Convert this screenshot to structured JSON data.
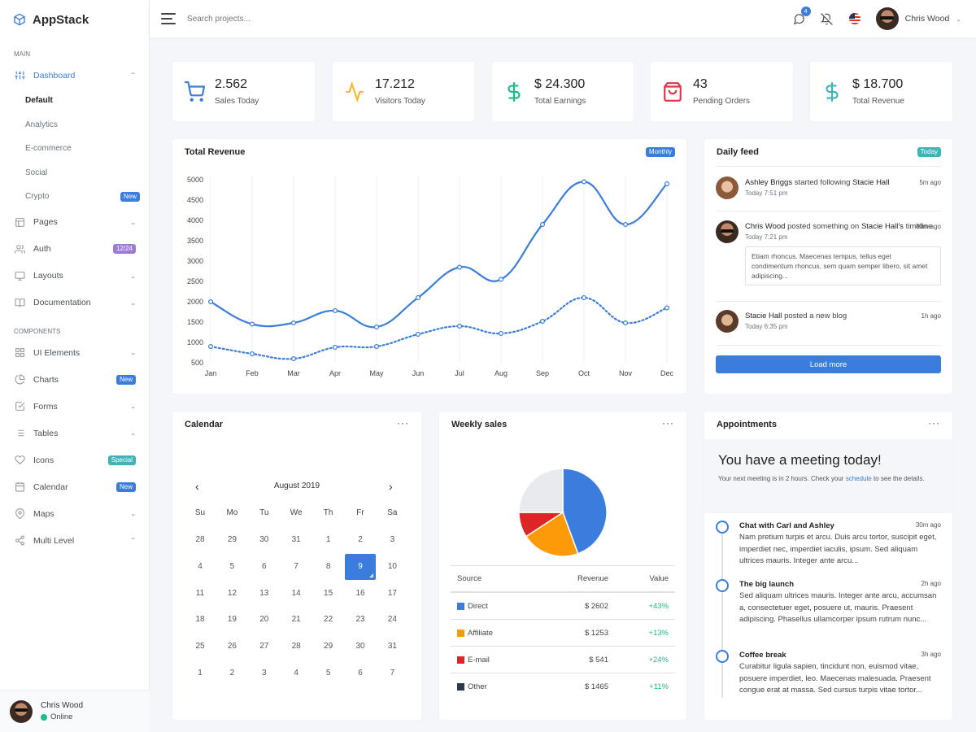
{
  "brand": {
    "name": "AppStack"
  },
  "sidebar": {
    "main_header": "Main",
    "components_header": "Components",
    "dashboard": {
      "label": "Dashboard",
      "items": [
        {
          "label": "Default"
        },
        {
          "label": "Analytics"
        },
        {
          "label": "E-commerce"
        },
        {
          "label": "Social"
        },
        {
          "label": "Crypto",
          "badge": "New"
        }
      ]
    },
    "pages": {
      "label": "Pages"
    },
    "auth": {
      "label": "Auth",
      "badge": "12/24"
    },
    "layouts": {
      "label": "Layouts"
    },
    "documentation": {
      "label": "Documentation"
    },
    "ui_elements": {
      "label": "UI Elements"
    },
    "charts": {
      "label": "Charts",
      "badge": "New"
    },
    "forms": {
      "label": "Forms"
    },
    "tables": {
      "label": "Tables"
    },
    "icons": {
      "label": "Icons",
      "badge": "Special"
    },
    "calendar": {
      "label": "Calendar",
      "badge": "New"
    },
    "maps": {
      "label": "Maps"
    },
    "multi_level": {
      "label": "Multi Level"
    },
    "user": {
      "name": "Chris Wood",
      "status": "Online"
    }
  },
  "topbar": {
    "search_placeholder": "Search projects...",
    "notification_count": "4",
    "user_name": "Chris Wood"
  },
  "stats": [
    {
      "value": "2.562",
      "label": "Sales Today",
      "icon": "cart-icon",
      "color": "#3b7ddd"
    },
    {
      "value": "17.212",
      "label": "Visitors Today",
      "icon": "activity-icon",
      "color": "#fcb92c"
    },
    {
      "value": "$ 24.300",
      "label": "Total Earnings",
      "icon": "dollar-icon",
      "color": "#1cbb8c"
    },
    {
      "value": "43",
      "label": "Pending Orders",
      "icon": "shopping-bag-icon",
      "color": "#dc3545"
    },
    {
      "value": "$ 18.700",
      "label": "Total Revenue",
      "icon": "dollar-icon",
      "color": "#3cb5b9"
    }
  ],
  "revenue": {
    "title": "Total Revenue",
    "badge": "Monthly"
  },
  "chart_data": {
    "type": "line",
    "categories": [
      "Jan",
      "Feb",
      "Mar",
      "Apr",
      "May",
      "Jun",
      "Jul",
      "Aug",
      "Sep",
      "Oct",
      "Nov",
      "Dec"
    ],
    "series": [
      {
        "values": [
          2000,
          1450,
          1480,
          1780,
          1380,
          2100,
          2850,
          2550,
          3900,
          4950,
          3900,
          4900
        ],
        "style": "solid",
        "color": "#3b7ddd"
      },
      {
        "values": [
          900,
          720,
          600,
          880,
          900,
          1200,
          1400,
          1220,
          1520,
          2100,
          1480,
          1850
        ],
        "style": "dotted",
        "color": "#3b7ddd"
      }
    ],
    "yticks": [
      500,
      1000,
      1500,
      2000,
      2500,
      3000,
      3500,
      4000,
      4500,
      5000
    ],
    "ylim": [
      500,
      5000
    ],
    "grid": "vertical"
  },
  "feed": {
    "title": "Daily feed",
    "badge": "Today",
    "items": [
      {
        "name": "Ashley Briggs",
        "action": "started following",
        "target": "Stacie Hall",
        "time": "Today 7:51 pm",
        "ago": "5m ago"
      },
      {
        "name": "Chris Wood",
        "action": "posted something on",
        "target": "Stacie Hall's",
        "tail": "timeline",
        "time": "Today 7:21 pm",
        "ago": "30m ago",
        "quote": "Etiam rhoncus. Maecenas tempus, tellus eget condimentum rhoncus, sem quam semper libero, sit amet adipiscing..."
      },
      {
        "name": "Stacie Hall",
        "action": "posted a new blog",
        "time": "Today 6:35 pm",
        "ago": "1h ago"
      }
    ],
    "load_more": "Load more"
  },
  "calendar": {
    "title": "Calendar",
    "month": "August 2019",
    "weekdays": [
      "Su",
      "Mo",
      "Tu",
      "We",
      "Th",
      "Fr",
      "Sa"
    ],
    "days": [
      "28",
      "29",
      "30",
      "31",
      "1",
      "2",
      "3",
      "4",
      "5",
      "6",
      "7",
      "8",
      "9",
      "10",
      "11",
      "12",
      "13",
      "14",
      "15",
      "16",
      "17",
      "18",
      "19",
      "20",
      "21",
      "22",
      "23",
      "24",
      "25",
      "26",
      "27",
      "28",
      "29",
      "30",
      "31",
      "1",
      "2",
      "3",
      "4",
      "5",
      "6",
      "7"
    ],
    "selected": "9"
  },
  "weekly": {
    "title": "Weekly sales",
    "headers": {
      "source": "Source",
      "revenue": "Revenue",
      "value": "Value"
    },
    "rows": [
      {
        "source": "Direct",
        "revenue": "$ 2602",
        "value": "+43%",
        "color": "#3b7ddd"
      },
      {
        "source": "Affiliate",
        "revenue": "$ 1253",
        "value": "+13%",
        "color": "#fd9a0a"
      },
      {
        "source": "E-mail",
        "revenue": "$ 541",
        "value": "+24%",
        "color": "#dc2626"
      },
      {
        "source": "Other",
        "revenue": "$ 1465",
        "value": "+11%",
        "color": "#2e3a4d"
      }
    ],
    "pie": [
      {
        "value": 2602,
        "color": "#3b7ddd"
      },
      {
        "value": 1253,
        "color": "#fd9a0a"
      },
      {
        "value": 541,
        "color": "#dc2626"
      },
      {
        "value": 1465,
        "color": "#e8eaed"
      }
    ]
  },
  "appointments": {
    "title": "Appointments",
    "headline": "You have a meeting today!",
    "intro_a": "Your next meeting is in 2 hours. Check your ",
    "intro_link": "schedule",
    "intro_b": " to see the details.",
    "items": [
      {
        "title": "Chat with Carl and Ashley",
        "ago": "30m ago",
        "text": "Nam pretium turpis et arcu. Duis arcu tortor, suscipit eget, imperdiet nec, imperdiet iaculis, ipsum. Sed aliquam ultrices mauris. Integer ante arcu..."
      },
      {
        "title": "The big launch",
        "ago": "2h ago",
        "text": "Sed aliquam ultrices mauris. Integer ante arcu, accumsan a, consectetuer eget, posuere ut, mauris. Praesent adipiscing. Phasellus ullamcorper ipsum rutrum nunc..."
      },
      {
        "title": "Coffee break",
        "ago": "3h ago",
        "text": "Curabitur ligula sapien, tincidunt non, euismod vitae, posuere imperdiet, leo. Maecenas malesuada. Praesent congue erat at massa. Sed cursus turpis vitae tortor..."
      }
    ]
  }
}
